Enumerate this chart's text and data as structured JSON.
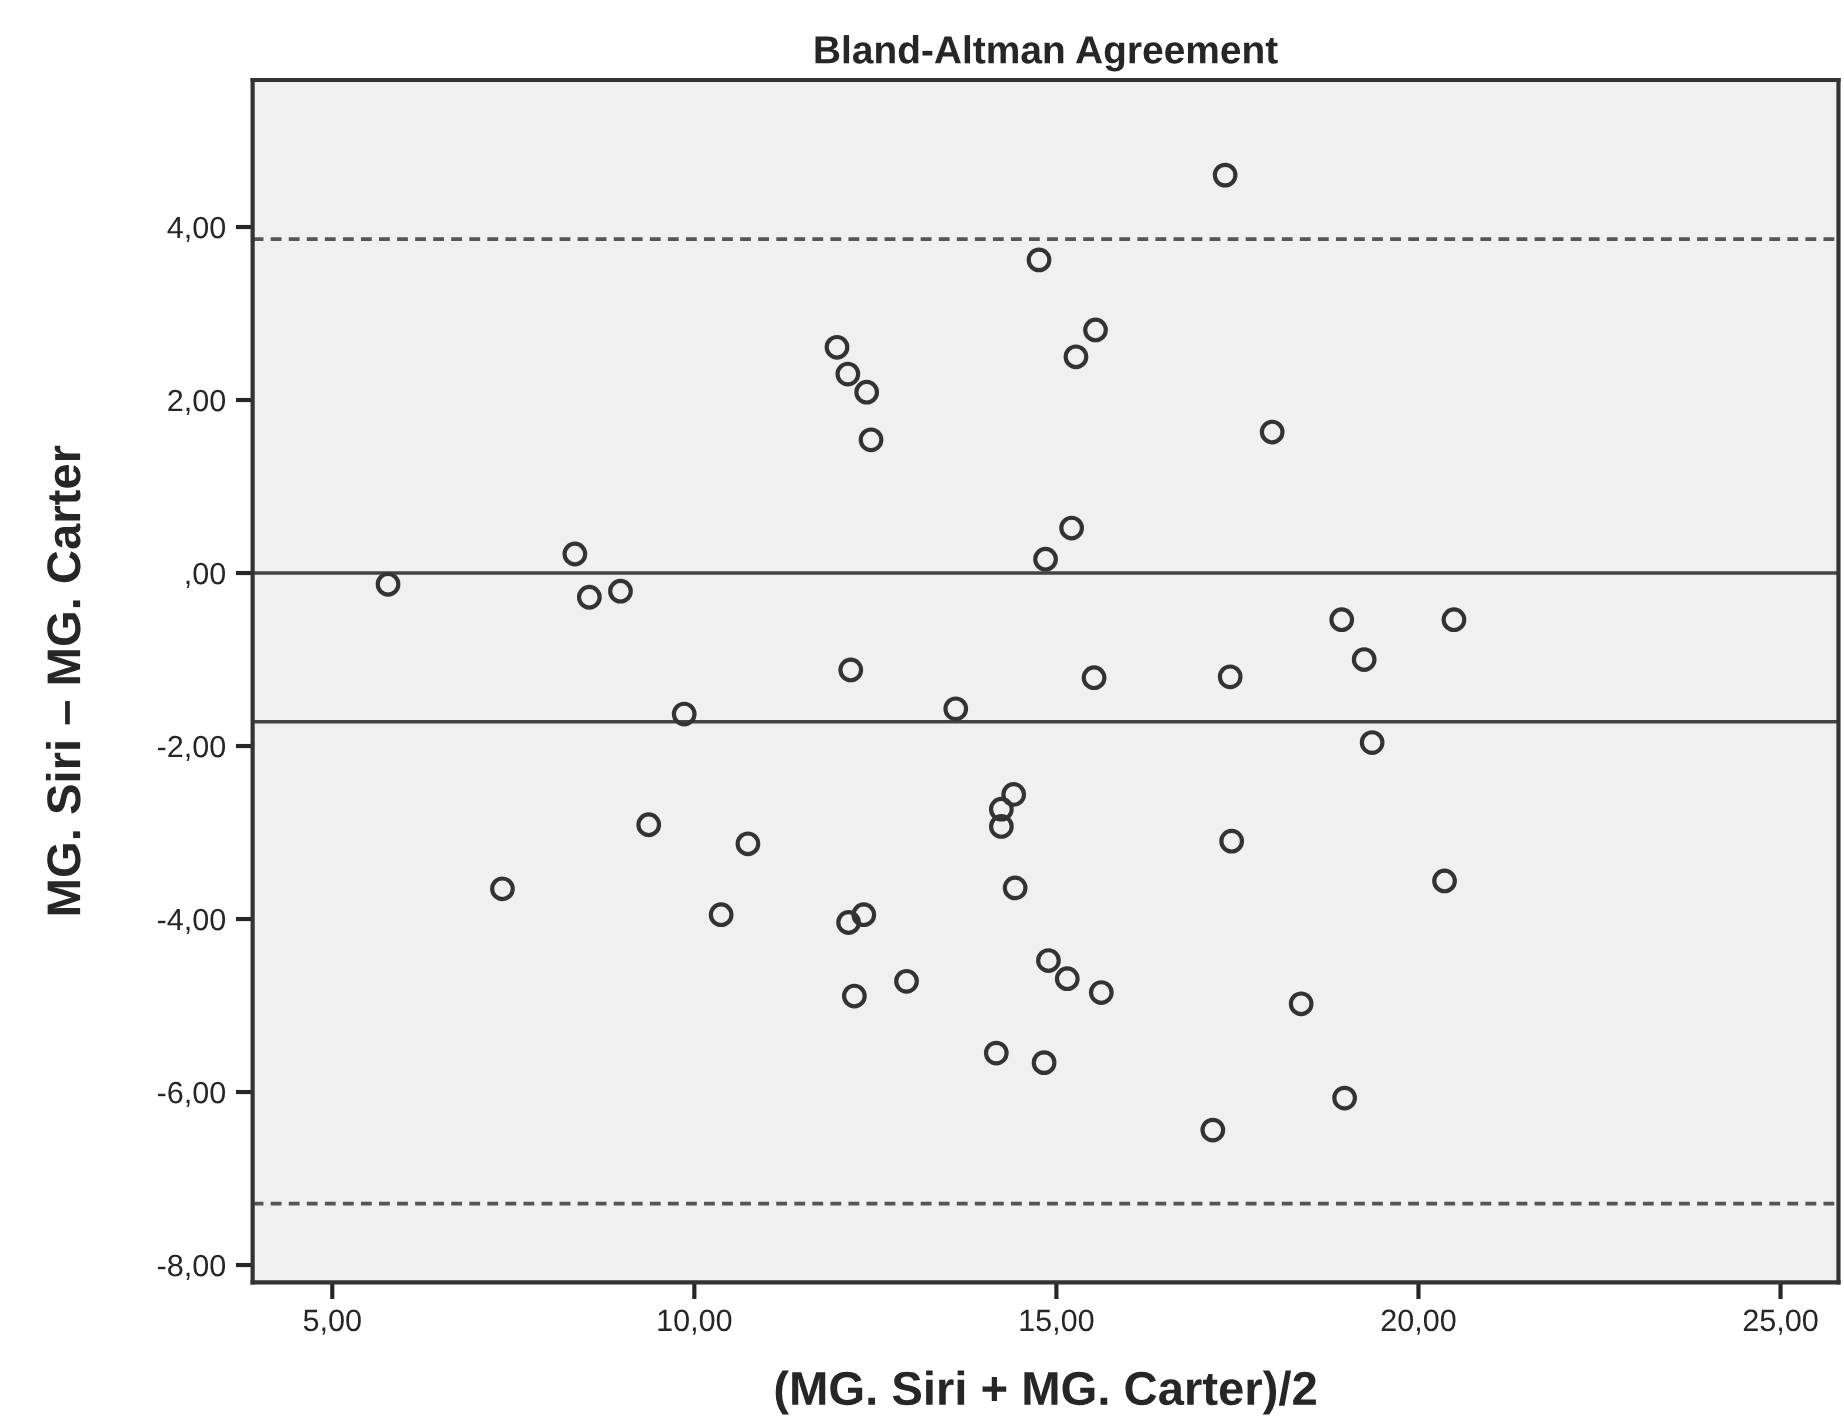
{
  "chart_data": {
    "type": "scatter",
    "title": "Bland-Altman Agreement",
    "xlabel": "(MG. Siri + MG. Carter)/2",
    "ylabel": "MG. Siri – MG. Carter",
    "marker": "circle",
    "grid": false,
    "legend": false,
    "xlim": [
      3.9,
      25.8
    ],
    "ylim": [
      -8.2,
      5.7
    ],
    "xticks": [
      {
        "value": 5,
        "label": "5,00"
      },
      {
        "value": 10,
        "label": "10,00"
      },
      {
        "value": 15,
        "label": "15,00"
      },
      {
        "value": 20,
        "label": "20,00"
      },
      {
        "value": 25,
        "label": "25,00"
      }
    ],
    "yticks": [
      {
        "value": -8,
        "label": "-8,00"
      },
      {
        "value": -6,
        "label": "-6,00"
      },
      {
        "value": -4,
        "label": "-4,00"
      },
      {
        "value": -2,
        "label": "-2,00"
      },
      {
        "value": 0,
        "label": ",00"
      },
      {
        "value": 2,
        "label": "2,00"
      },
      {
        "value": 4,
        "label": "4,00"
      }
    ],
    "ref_lines": [
      {
        "axis": "y",
        "value": 3.86,
        "line_style": "dashed",
        "color": "#555555"
      },
      {
        "axis": "y",
        "value": 0,
        "line_style": "solid",
        "color": "#444444"
      },
      {
        "axis": "y",
        "value": -1.72,
        "line_style": "solid",
        "color": "#444444"
      },
      {
        "axis": "y",
        "value": -7.29,
        "line_style": "dashed",
        "color": "#555555"
      }
    ],
    "series": [
      {
        "color": "#333333",
        "x": [
          5.77,
          8.35,
          8.55,
          8.98,
          11.97,
          12.12,
          12.38,
          12.44,
          12.16,
          9.86,
          13.61,
          17.33,
          14.76,
          15.54,
          15.27,
          17.98,
          15.21,
          14.85,
          18.94,
          20.49,
          19.25,
          15.52,
          17.4,
          19.36,
          14.41,
          14.24,
          14.24,
          14.43,
          17.42,
          20.36,
          14.89,
          15.15,
          15.62,
          18.38,
          14.17,
          14.83,
          18.98,
          17.16,
          9.37,
          10.74,
          7.35,
          10.37,
          12.13,
          12.34,
          12.21,
          12.93
        ],
        "values": [
          -0.13,
          0.22,
          -0.28,
          -0.21,
          2.61,
          2.3,
          2.09,
          1.54,
          -1.12,
          -1.63,
          -1.57,
          4.6,
          3.62,
          2.81,
          2.5,
          1.63,
          0.52,
          0.16,
          -0.54,
          -0.54,
          -1.0,
          -1.21,
          -1.2,
          -1.96,
          -2.56,
          -2.73,
          -2.93,
          -3.64,
          -3.1,
          -3.56,
          -4.48,
          -4.69,
          -4.85,
          -4.98,
          -5.55,
          -5.66,
          -6.07,
          -6.44,
          -2.91,
          -3.13,
          -3.65,
          -3.95,
          -4.04,
          -3.95,
          -4.89,
          -4.72
        ]
      }
    ]
  }
}
